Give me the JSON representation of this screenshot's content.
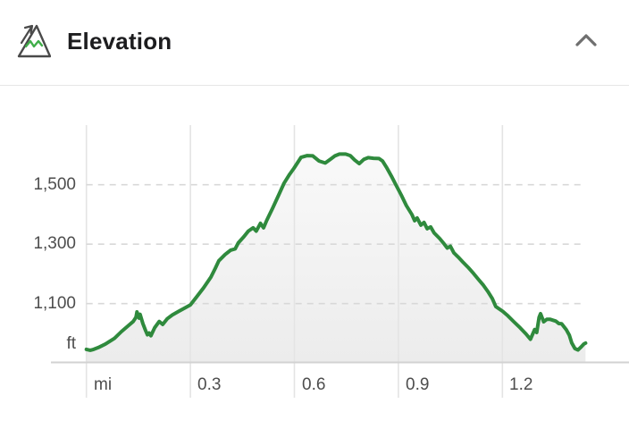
{
  "header": {
    "title": "Elevation",
    "icon": "mountain-elevation-icon",
    "collapse_icon": "chevron-up-icon"
  },
  "colors": {
    "line_green": "#2f8a3d",
    "icon_green": "#3fae49",
    "icon_outline": "#4a4a4a",
    "title_text": "#1d1d1f",
    "axis_text": "#4d4d4d",
    "grid_vertical": "#e4e4e4",
    "grid_dashed": "#d8d8d8",
    "axis_line": "#d2d2d2",
    "divider": "#e6e6e6",
    "fill_top": "#f9f9f9",
    "fill_bottom": "#ececec",
    "chevron": "#6f6f6f"
  },
  "chart_data": {
    "type": "area",
    "title": "Elevation",
    "xlabel": "mi",
    "ylabel": "ft",
    "xlim": [
      0,
      1.44
    ],
    "ylim": [
      900,
      1620
    ],
    "grid": "horizontal dashed gridlines, vertical solid gridlines",
    "legend": "none",
    "x_ticks": [
      {
        "value": 0.0,
        "label": "mi"
      },
      {
        "value": 0.3,
        "label": "0.3"
      },
      {
        "value": 0.6,
        "label": "0.6"
      },
      {
        "value": 0.9,
        "label": "0.9"
      },
      {
        "value": 1.2,
        "label": "1.2"
      }
    ],
    "y_ticks": [
      {
        "value": 1500,
        "label": "1,500"
      },
      {
        "value": 1300,
        "label": "1,300"
      },
      {
        "value": 1100,
        "label": "1,100"
      }
    ],
    "points_mi_ft": [
      [
        0.0,
        946
      ],
      [
        0.011,
        943
      ],
      [
        0.021,
        946
      ],
      [
        0.034,
        952
      ],
      [
        0.055,
        964
      ],
      [
        0.081,
        983
      ],
      [
        0.101,
        1006
      ],
      [
        0.119,
        1024
      ],
      [
        0.135,
        1040
      ],
      [
        0.143,
        1054
      ],
      [
        0.146,
        1072
      ],
      [
        0.152,
        1051
      ],
      [
        0.155,
        1064
      ],
      [
        0.163,
        1033
      ],
      [
        0.171,
        1009
      ],
      [
        0.176,
        995
      ],
      [
        0.181,
        1001
      ],
      [
        0.186,
        992
      ],
      [
        0.197,
        1019
      ],
      [
        0.21,
        1040
      ],
      [
        0.22,
        1030
      ],
      [
        0.233,
        1049
      ],
      [
        0.248,
        1062
      ],
      [
        0.266,
        1074
      ],
      [
        0.282,
        1084
      ],
      [
        0.3,
        1096
      ],
      [
        0.318,
        1123
      ],
      [
        0.338,
        1153
      ],
      [
        0.359,
        1189
      ],
      [
        0.372,
        1219
      ],
      [
        0.382,
        1244
      ],
      [
        0.4,
        1265
      ],
      [
        0.416,
        1280
      ],
      [
        0.429,
        1284
      ],
      [
        0.438,
        1304
      ],
      [
        0.454,
        1325
      ],
      [
        0.467,
        1344
      ],
      [
        0.481,
        1355
      ],
      [
        0.49,
        1344
      ],
      [
        0.502,
        1370
      ],
      [
        0.511,
        1355
      ],
      [
        0.52,
        1380
      ],
      [
        0.537,
        1421
      ],
      [
        0.555,
        1466
      ],
      [
        0.57,
        1505
      ],
      [
        0.586,
        1535
      ],
      [
        0.599,
        1556
      ],
      [
        0.609,
        1574
      ],
      [
        0.619,
        1592
      ],
      [
        0.637,
        1598
      ],
      [
        0.653,
        1597
      ],
      [
        0.671,
        1580
      ],
      [
        0.689,
        1573
      ],
      [
        0.704,
        1586
      ],
      [
        0.717,
        1597
      ],
      [
        0.73,
        1603
      ],
      [
        0.748,
        1603
      ],
      [
        0.761,
        1598
      ],
      [
        0.774,
        1583
      ],
      [
        0.787,
        1571
      ],
      [
        0.8,
        1585
      ],
      [
        0.813,
        1591
      ],
      [
        0.828,
        1589
      ],
      [
        0.844,
        1588
      ],
      [
        0.854,
        1580
      ],
      [
        0.867,
        1556
      ],
      [
        0.88,
        1529
      ],
      [
        0.893,
        1499
      ],
      [
        0.908,
        1466
      ],
      [
        0.923,
        1430
      ],
      [
        0.939,
        1400
      ],
      [
        0.947,
        1379
      ],
      [
        0.954,
        1388
      ],
      [
        0.965,
        1364
      ],
      [
        0.974,
        1373
      ],
      [
        0.983,
        1352
      ],
      [
        0.993,
        1358
      ],
      [
        1.003,
        1338
      ],
      [
        1.019,
        1319
      ],
      [
        1.032,
        1301
      ],
      [
        1.041,
        1287
      ],
      [
        1.05,
        1293
      ],
      [
        1.06,
        1271
      ],
      [
        1.073,
        1256
      ],
      [
        1.086,
        1240
      ],
      [
        1.101,
        1222
      ],
      [
        1.117,
        1201
      ],
      [
        1.132,
        1180
      ],
      [
        1.145,
        1162
      ],
      [
        1.158,
        1141
      ],
      [
        1.171,
        1117
      ],
      [
        1.181,
        1090
      ],
      [
        1.201,
        1074
      ],
      [
        1.216,
        1059
      ],
      [
        1.233,
        1039
      ],
      [
        1.251,
        1019
      ],
      [
        1.268,
        998
      ],
      [
        1.281,
        980
      ],
      [
        1.293,
        1013
      ],
      [
        1.299,
        1003
      ],
      [
        1.306,
        1054
      ],
      [
        1.31,
        1066
      ],
      [
        1.319,
        1039
      ],
      [
        1.328,
        1047
      ],
      [
        1.338,
        1047
      ],
      [
        1.354,
        1041
      ],
      [
        1.363,
        1033
      ],
      [
        1.371,
        1032
      ],
      [
        1.384,
        1013
      ],
      [
        1.393,
        994
      ],
      [
        1.4,
        968
      ],
      [
        1.409,
        949
      ],
      [
        1.418,
        944
      ],
      [
        1.426,
        953
      ],
      [
        1.435,
        964
      ],
      [
        1.44,
        967
      ]
    ]
  }
}
